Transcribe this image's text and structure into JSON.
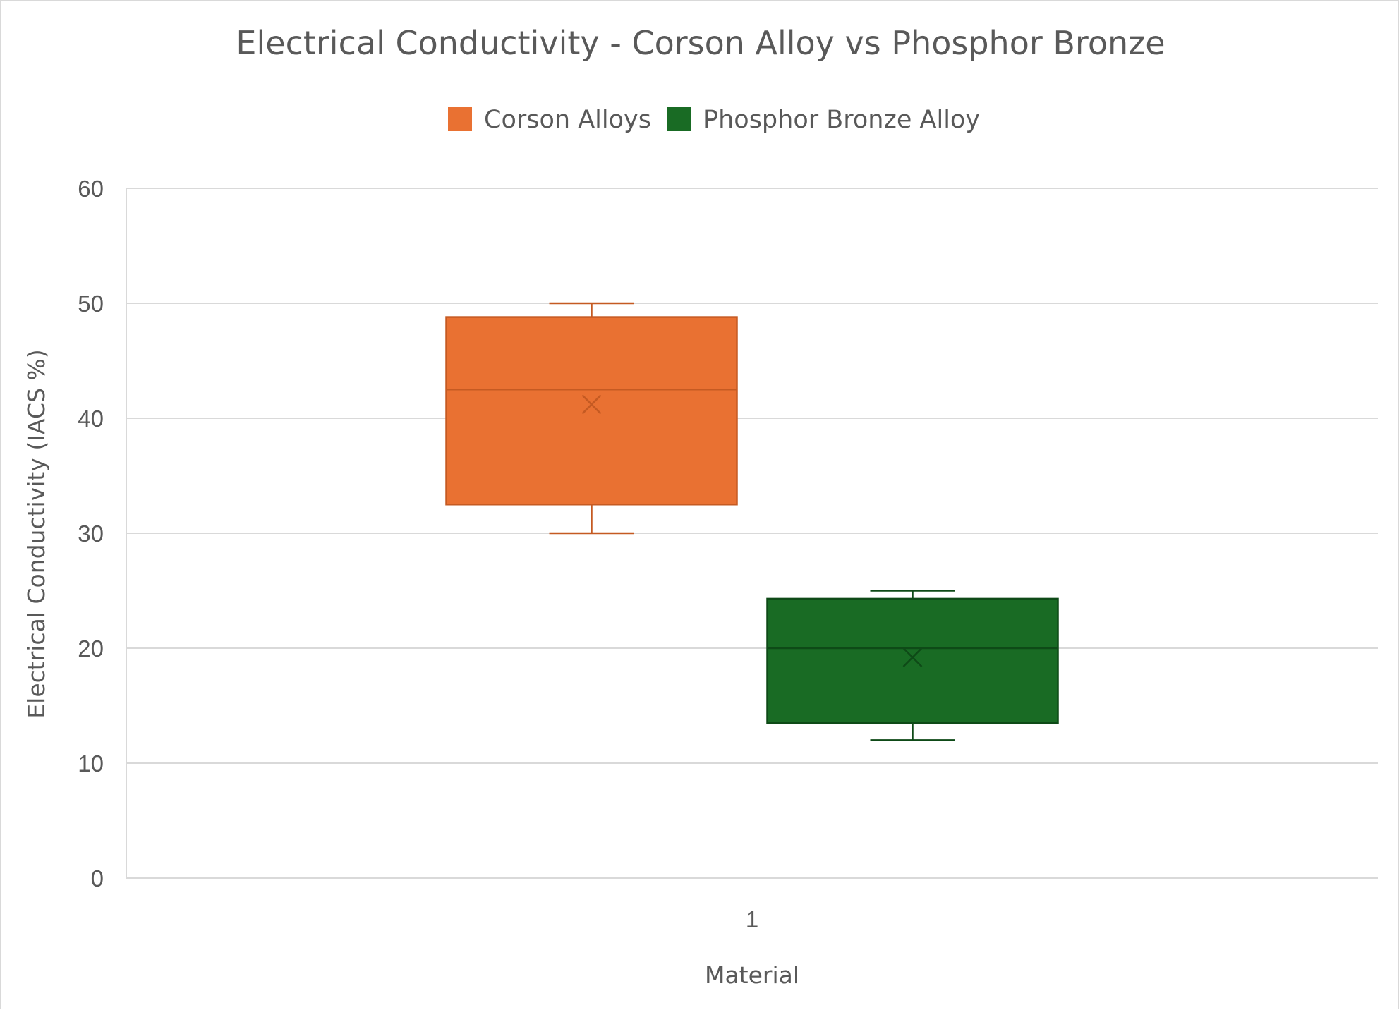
{
  "chart_data": {
    "type": "box",
    "title": "Electrical Conductivity - Corson Alloy vs Phosphor Bronze",
    "xlabel": "Material",
    "ylabel": "Electrical Conductivity (IACS %)",
    "categories": [
      "1"
    ],
    "ylim": [
      0,
      60
    ],
    "yticks": [
      "0",
      "10",
      "20",
      "30",
      "40",
      "50",
      "60"
    ],
    "grid": true,
    "legend_position": "top",
    "series": [
      {
        "name": "Corson Alloys",
        "color": "#E97132",
        "edge_color": "#C55A22",
        "min": 30,
        "q1": 32.5,
        "median": 42.5,
        "mean": 41.2,
        "q3": 48.8,
        "max": 50
      },
      {
        "name": "Phosphor Bronze Alloy",
        "color": "#196B24",
        "edge_color": "#0E4A17",
        "min": 12,
        "q1": 13.5,
        "median": 20,
        "mean": 19.2,
        "q3": 24.3,
        "max": 25
      }
    ]
  }
}
